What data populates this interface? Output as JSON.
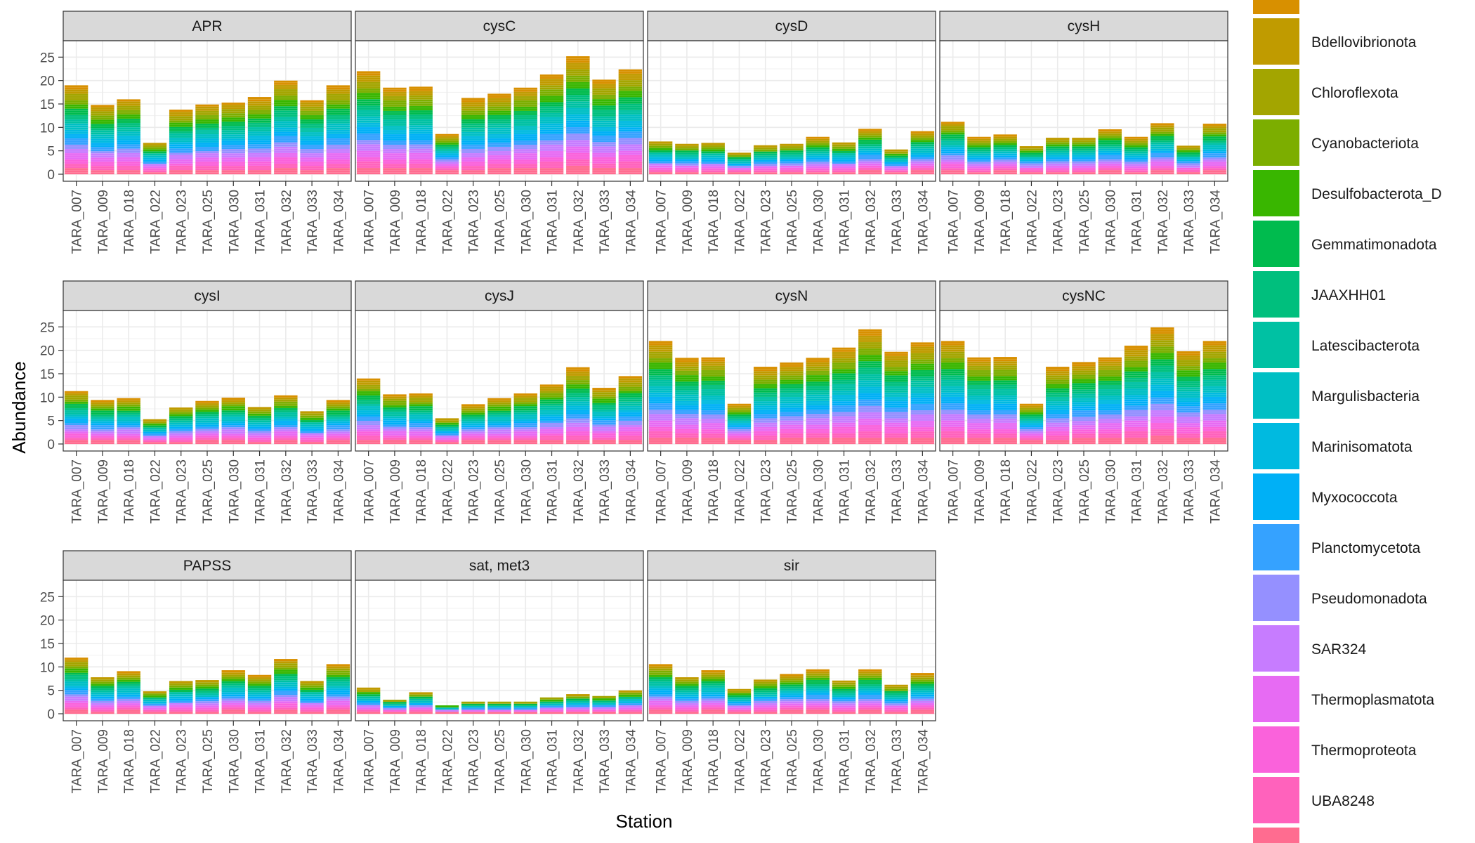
{
  "chart_data": {
    "type": "bar",
    "stacked": true,
    "faceted": true,
    "xlabel": "Station",
    "ylabel": "Abundance",
    "ylim": [
      0,
      27
    ],
    "yticks": [
      0,
      5,
      10,
      15,
      20,
      25
    ],
    "grid": true,
    "legend_position": "right",
    "stations": [
      "TARA_007",
      "TARA_009",
      "TARA_018",
      "TARA_022",
      "TARA_023",
      "TARA_025",
      "TARA_030",
      "TARA_031",
      "TARA_032",
      "TARA_033",
      "TARA_034"
    ],
    "facets": [
      {
        "label": "APR",
        "totals": [
          19.0,
          14.8,
          16.0,
          6.7,
          13.8,
          14.9,
          15.3,
          16.5,
          20.0,
          15.8,
          19.0
        ]
      },
      {
        "label": "cysC",
        "totals": [
          22.0,
          18.5,
          18.7,
          8.6,
          16.3,
          17.2,
          18.5,
          21.3,
          25.2,
          20.2,
          22.4
        ]
      },
      {
        "label": "cysD",
        "totals": [
          7.0,
          6.5,
          6.7,
          4.6,
          6.2,
          6.5,
          8.0,
          6.8,
          9.7,
          5.3,
          9.2
        ]
      },
      {
        "label": "cysH",
        "totals": [
          11.2,
          8.0,
          8.5,
          6.0,
          7.8,
          7.8,
          9.6,
          8.0,
          10.9,
          6.1,
          10.8
        ]
      },
      {
        "label": "cysI",
        "totals": [
          11.3,
          9.4,
          9.8,
          5.3,
          7.8,
          9.2,
          9.9,
          7.9,
          10.4,
          7.0,
          9.4
        ]
      },
      {
        "label": "cysJ",
        "totals": [
          14.0,
          10.6,
          10.8,
          5.5,
          8.5,
          9.8,
          10.8,
          12.7,
          16.4,
          12.0,
          14.5
        ]
      },
      {
        "label": "cysN",
        "totals": [
          22.0,
          18.4,
          18.5,
          8.6,
          16.5,
          17.4,
          18.4,
          20.6,
          24.5,
          19.7,
          21.7
        ]
      },
      {
        "label": "cysNC",
        "totals": [
          22.0,
          18.5,
          18.6,
          8.6,
          16.5,
          17.5,
          18.5,
          21.0,
          24.9,
          19.8,
          22.0
        ]
      },
      {
        "label": "PAPSS",
        "totals": [
          12.0,
          7.8,
          9.1,
          4.8,
          7.0,
          7.2,
          9.3,
          8.3,
          11.7,
          7.0,
          10.6
        ]
      },
      {
        "label": "sat, met3",
        "totals": [
          5.6,
          3.0,
          4.6,
          1.8,
          2.6,
          2.6,
          2.6,
          3.5,
          4.2,
          3.8,
          5.0
        ]
      },
      {
        "label": "sir",
        "totals": [
          10.6,
          7.8,
          9.3,
          5.3,
          7.3,
          8.5,
          9.5,
          7.1,
          9.5,
          6.2,
          8.7
        ]
      }
    ],
    "series": [
      {
        "name": "",
        "color": "#D89000"
      },
      {
        "name": "Bdellovibrionota",
        "color": "#C09B00"
      },
      {
        "name": "Chloroflexota",
        "color": "#A3A500"
      },
      {
        "name": "Cyanobacteriota",
        "color": "#7CAE00"
      },
      {
        "name": "Desulfobacterota_D",
        "color": "#39B600"
      },
      {
        "name": "Gemmatimonadota",
        "color": "#00BB4E"
      },
      {
        "name": "JAAXHH01",
        "color": "#00BF7D"
      },
      {
        "name": "Latescibacterota",
        "color": "#00C1A3"
      },
      {
        "name": "Margulisbacteria",
        "color": "#00BFC4"
      },
      {
        "name": "Marinisomatota",
        "color": "#00BAE0"
      },
      {
        "name": "Myxococcota",
        "color": "#00B0F6"
      },
      {
        "name": "Planctomycetota",
        "color": "#35A2FF"
      },
      {
        "name": "Pseudomonadota",
        "color": "#9590FF"
      },
      {
        "name": "SAR324",
        "color": "#C77CFF"
      },
      {
        "name": "Thermoplasmatota",
        "color": "#E76BF3"
      },
      {
        "name": "Thermoproteota",
        "color": "#FA62DB"
      },
      {
        "name": "UBA8248",
        "color": "#FF62BC"
      },
      {
        "name": "",
        "color": "#FF6C90"
      }
    ]
  }
}
